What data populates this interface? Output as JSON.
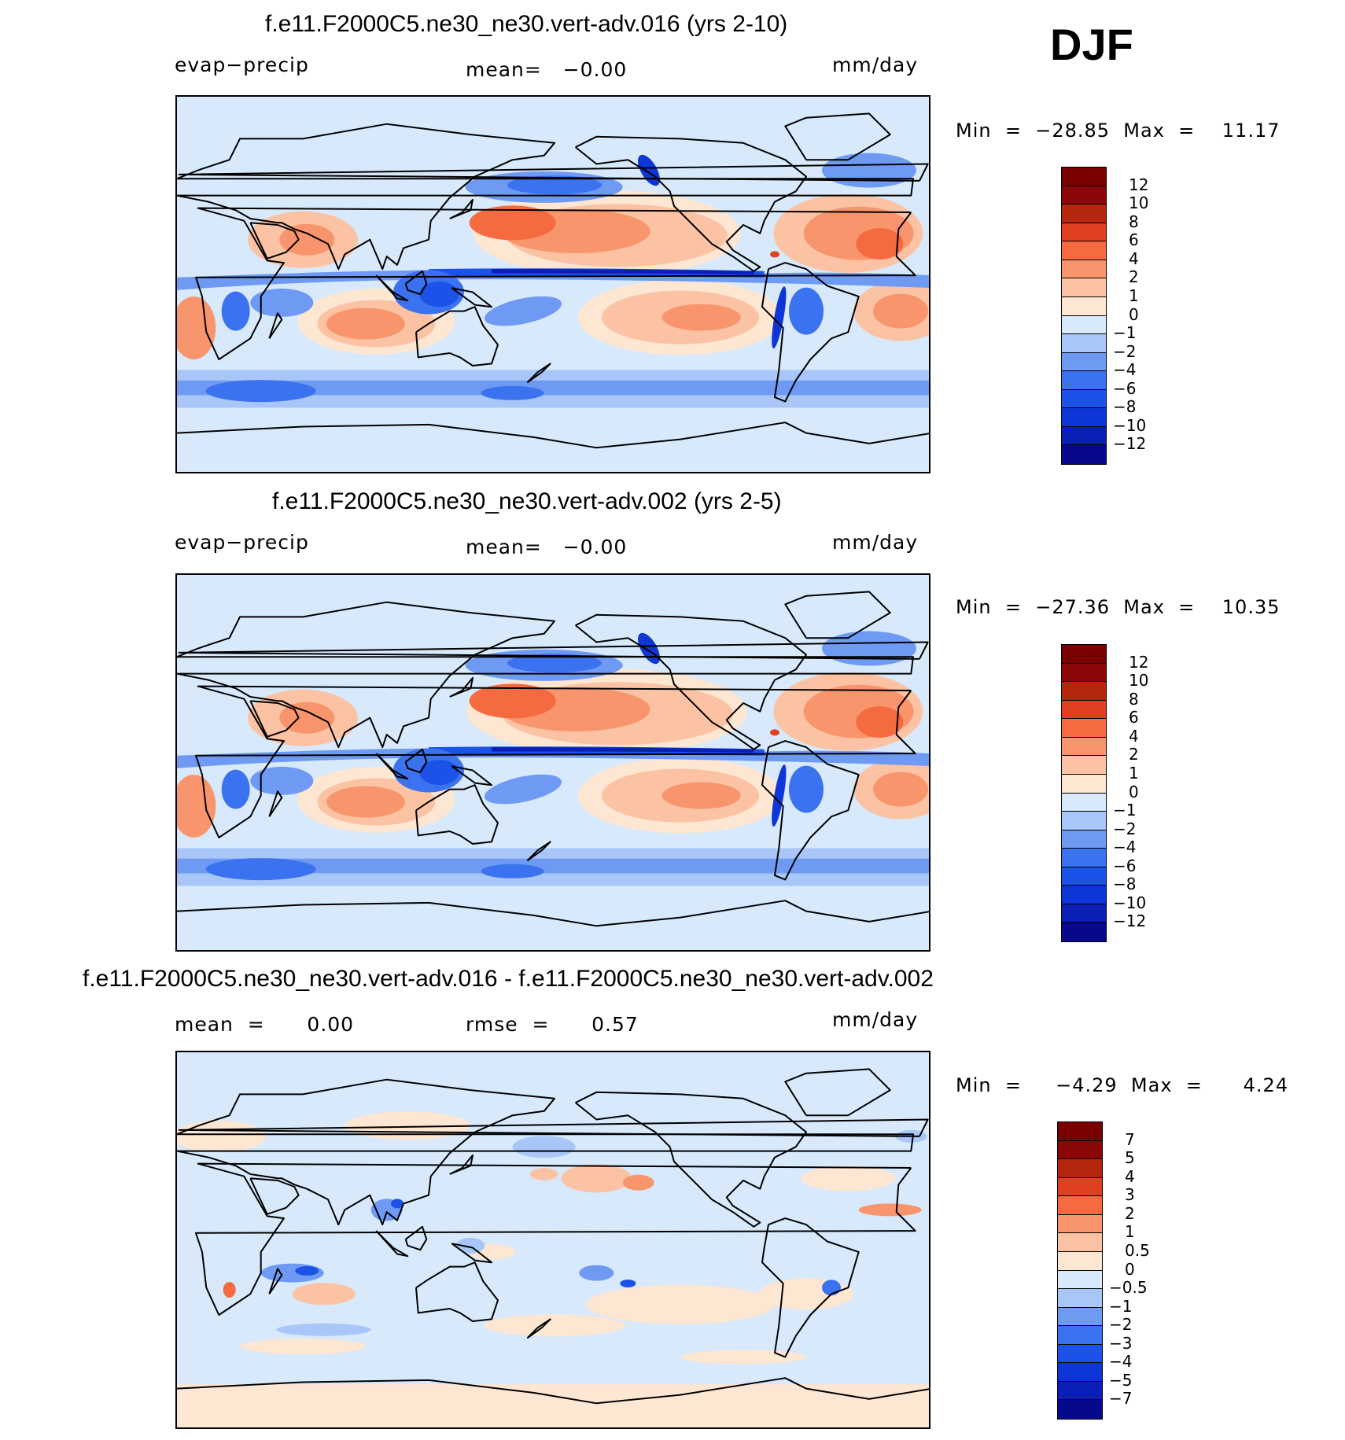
{
  "season": "DJF",
  "colors": {
    "panel_levels": [
      "#08088c",
      "#0a1fb5",
      "#0d35d8",
      "#1b52e8",
      "#3b72ef",
      "#6e9af3",
      "#a9c6f8",
      "#d7e9fb",
      "#fde6d2",
      "#fbc3a4",
      "#f9956c",
      "#f56a3f",
      "#e0401f",
      "#b5260f",
      "#8b0707"
    ],
    "diff_levels": [
      "#08088c",
      "#0a1fb5",
      "#0d35d8",
      "#1b52e8",
      "#3b72ef",
      "#6e9af3",
      "#a9c6f8",
      "#d7e9fb",
      "#fde6d2",
      "#fbc3a4",
      "#f9956c",
      "#f56a3f",
      "#e0401f",
      "#b5260f",
      "#8b0707"
    ],
    "coast": "#000000"
  },
  "chart_data": [
    {
      "type": "heatmap",
      "title": "f.e11.F2000C5.ne30_ne30.vert-adv.016 (yrs 2-10)",
      "variable": "evap−precip",
      "mean_text": "mean=   −0.00",
      "units": "mm/day",
      "min": -28.85,
      "max": 11.17,
      "min_label": "Min  =  −28.85  Max  =    11.17",
      "levels": [
        -12,
        -10,
        -8,
        -6,
        -4,
        -2,
        -1,
        0,
        1,
        2,
        4,
        6,
        8,
        10,
        12
      ],
      "tick_labels": [
        "12",
        "10",
        "8",
        "6",
        "4",
        "2",
        "1",
        "0",
        "−1",
        "−2",
        "−4",
        "−6",
        "−8",
        "−10",
        "−12"
      ],
      "map": "global cylindrical equidistant, centered 180E"
    },
    {
      "type": "heatmap",
      "title": "f.e11.F2000C5.ne30_ne30.vert-adv.002 (yrs 2-5)",
      "variable": "evap−precip",
      "mean_text": "mean=   −0.00",
      "units": "mm/day",
      "min": -27.36,
      "max": 10.35,
      "min_label": "Min  =  −27.36  Max  =    10.35",
      "levels": [
        -12,
        -10,
        -8,
        -6,
        -4,
        -2,
        -1,
        0,
        1,
        2,
        4,
        6,
        8,
        10,
        12
      ],
      "tick_labels": [
        "12",
        "10",
        "8",
        "6",
        "4",
        "2",
        "1",
        "0",
        "−1",
        "−2",
        "−4",
        "−6",
        "−8",
        "−10",
        "−12"
      ],
      "map": "global cylindrical equidistant, centered 180E"
    },
    {
      "type": "heatmap",
      "title": "f.e11.F2000C5.ne30_ne30.vert-adv.016 - f.e11.F2000C5.ne30_ne30.vert-adv.002",
      "mean_text": "mean  =      0.00",
      "rmse_text": "rmse  =      0.57",
      "units": "mm/day",
      "min": -4.29,
      "max": 4.24,
      "min_label": "Min  =     −4.29  Max  =      4.24",
      "levels": [
        -7,
        -5,
        -4,
        -3,
        -2,
        -1,
        -0.5,
        0,
        0.5,
        1,
        2,
        3,
        4,
        5,
        7
      ],
      "tick_labels": [
        "7",
        "5",
        "4",
        "3",
        "2",
        "1",
        "0.5",
        "0",
        "−0.5",
        "−1",
        "−2",
        "−3",
        "−4",
        "−5",
        "−7"
      ],
      "map": "global cylindrical equidistant, centered 180E"
    }
  ]
}
